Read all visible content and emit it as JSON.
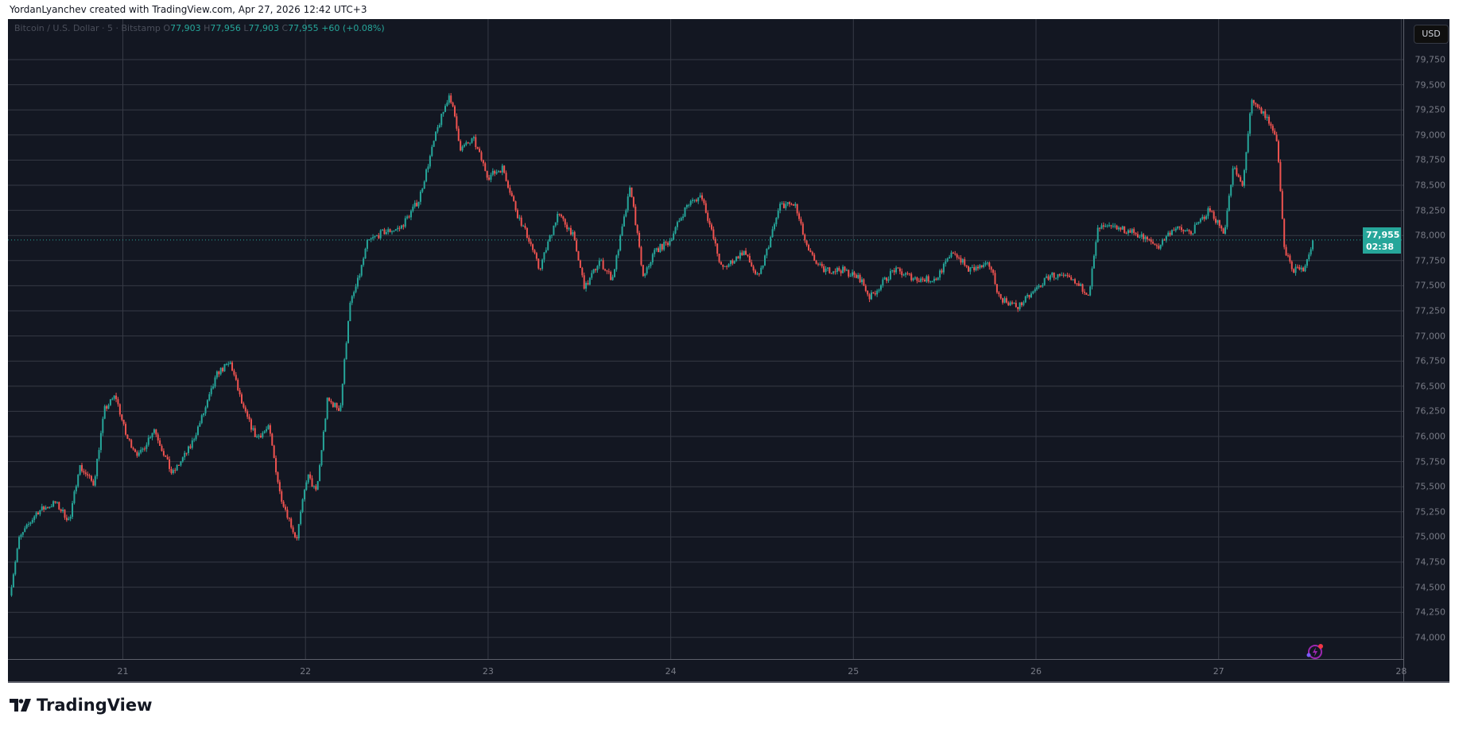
{
  "header": {
    "credit": "YordanLyanchev created with TradingView.com, Apr 27, 2026 12:42 UTC+3"
  },
  "legend": {
    "symbol": "Bitcoin / U.S. Dollar · 5 · Bitstamp",
    "o_label": "O",
    "open": "77,903",
    "h_label": "H",
    "high": "77,956",
    "l_label": "L",
    "low": "77,903",
    "c_label": "C",
    "close": "77,955",
    "change": "+60 (+0.08%)"
  },
  "currency_button": "USD",
  "last_price": {
    "price": "77,955",
    "countdown": "02:38",
    "value": 77955
  },
  "colors": {
    "background": "#131722",
    "up": "#26a69a",
    "down": "#ef5350",
    "grid": "#363a45"
  },
  "footer": {
    "logo_text": "TradingView"
  },
  "chart_data": {
    "type": "candlestick",
    "interval": "5",
    "ylim": [
      73900,
      79850
    ],
    "xlim": [
      20.37,
      28.05
    ],
    "y_ticks": [
      74000,
      74250,
      74500,
      74750,
      75000,
      75250,
      75500,
      75750,
      76000,
      76250,
      76500,
      76750,
      77000,
      77250,
      77500,
      77750,
      78000,
      78250,
      78500,
      78750,
      79000,
      79250,
      79500,
      79750
    ],
    "y_tick_labels": [
      "74,000",
      "74,250",
      "74,500",
      "74,750",
      "75,000",
      "75,250",
      "75,500",
      "75,750",
      "76,000",
      "76,250",
      "76,500",
      "76,750",
      "77,000",
      "77,250",
      "77,500",
      "77,750",
      "78,000",
      "78,250",
      "78,500",
      "78,750",
      "79,000",
      "79,250",
      "79,500",
      "79,750"
    ],
    "x_ticks": [
      21,
      22,
      23,
      24,
      25,
      26,
      27,
      28
    ],
    "x_tick_labels": [
      "21",
      "22",
      "23",
      "24",
      "25",
      "26",
      "27",
      "28"
    ],
    "grid": true,
    "price_path": [
      [
        20.38,
        74417
      ],
      [
        20.43,
        74972
      ],
      [
        20.53,
        75250
      ],
      [
        20.63,
        75340
      ],
      [
        20.71,
        75157
      ],
      [
        20.76,
        75710
      ],
      [
        20.84,
        75527
      ],
      [
        20.9,
        76268
      ],
      [
        20.96,
        76407
      ],
      [
        21.02,
        75990
      ],
      [
        21.09,
        75805
      ],
      [
        21.17,
        76083
      ],
      [
        21.27,
        75620
      ],
      [
        21.37,
        75898
      ],
      [
        21.45,
        76268
      ],
      [
        21.52,
        76639
      ],
      [
        21.59,
        76731
      ],
      [
        21.66,
        76268
      ],
      [
        21.73,
        75990
      ],
      [
        21.8,
        76083
      ],
      [
        21.86,
        75435
      ],
      [
        21.95,
        74972
      ],
      [
        22.01,
        75620
      ],
      [
        22.06,
        75435
      ],
      [
        22.12,
        76361
      ],
      [
        22.19,
        76268
      ],
      [
        22.24,
        77287
      ],
      [
        22.29,
        77565
      ],
      [
        22.34,
        77935
      ],
      [
        22.42,
        78028
      ],
      [
        22.52,
        78074
      ],
      [
        22.62,
        78352
      ],
      [
        22.72,
        79046
      ],
      [
        22.79,
        79417
      ],
      [
        22.85,
        78861
      ],
      [
        22.92,
        78954
      ],
      [
        23.0,
        78583
      ],
      [
        23.08,
        78676
      ],
      [
        23.16,
        78213
      ],
      [
        23.23,
        77935
      ],
      [
        23.28,
        77657
      ],
      [
        23.38,
        78213
      ],
      [
        23.46,
        78028
      ],
      [
        23.53,
        77472
      ],
      [
        23.61,
        77750
      ],
      [
        23.68,
        77565
      ],
      [
        23.78,
        78491
      ],
      [
        23.85,
        77565
      ],
      [
        23.91,
        77843
      ],
      [
        23.99,
        77935
      ],
      [
        24.09,
        78306
      ],
      [
        24.17,
        78398
      ],
      [
        24.28,
        77657
      ],
      [
        24.4,
        77843
      ],
      [
        24.48,
        77565
      ],
      [
        24.6,
        78306
      ],
      [
        24.68,
        78306
      ],
      [
        24.75,
        77843
      ],
      [
        24.83,
        77657
      ],
      [
        24.94,
        77657
      ],
      [
        25.04,
        77565
      ],
      [
        25.09,
        77380
      ],
      [
        25.22,
        77657
      ],
      [
        25.35,
        77565
      ],
      [
        25.45,
        77565
      ],
      [
        25.55,
        77843
      ],
      [
        25.63,
        77657
      ],
      [
        25.75,
        77704
      ],
      [
        25.8,
        77380
      ],
      [
        25.9,
        77287
      ],
      [
        25.98,
        77426
      ],
      [
        26.08,
        77611
      ],
      [
        26.18,
        77565
      ],
      [
        26.29,
        77426
      ],
      [
        26.34,
        78074
      ],
      [
        26.44,
        78074
      ],
      [
        26.54,
        78028
      ],
      [
        26.67,
        77889
      ],
      [
        26.75,
        78074
      ],
      [
        26.85,
        78028
      ],
      [
        26.95,
        78259
      ],
      [
        27.03,
        78028
      ],
      [
        27.08,
        78676
      ],
      [
        27.13,
        78491
      ],
      [
        27.18,
        79324
      ],
      [
        27.26,
        79185
      ],
      [
        27.32,
        78954
      ],
      [
        27.36,
        77843
      ],
      [
        27.41,
        77657
      ],
      [
        27.46,
        77657
      ],
      [
        27.52,
        77955
      ]
    ]
  }
}
